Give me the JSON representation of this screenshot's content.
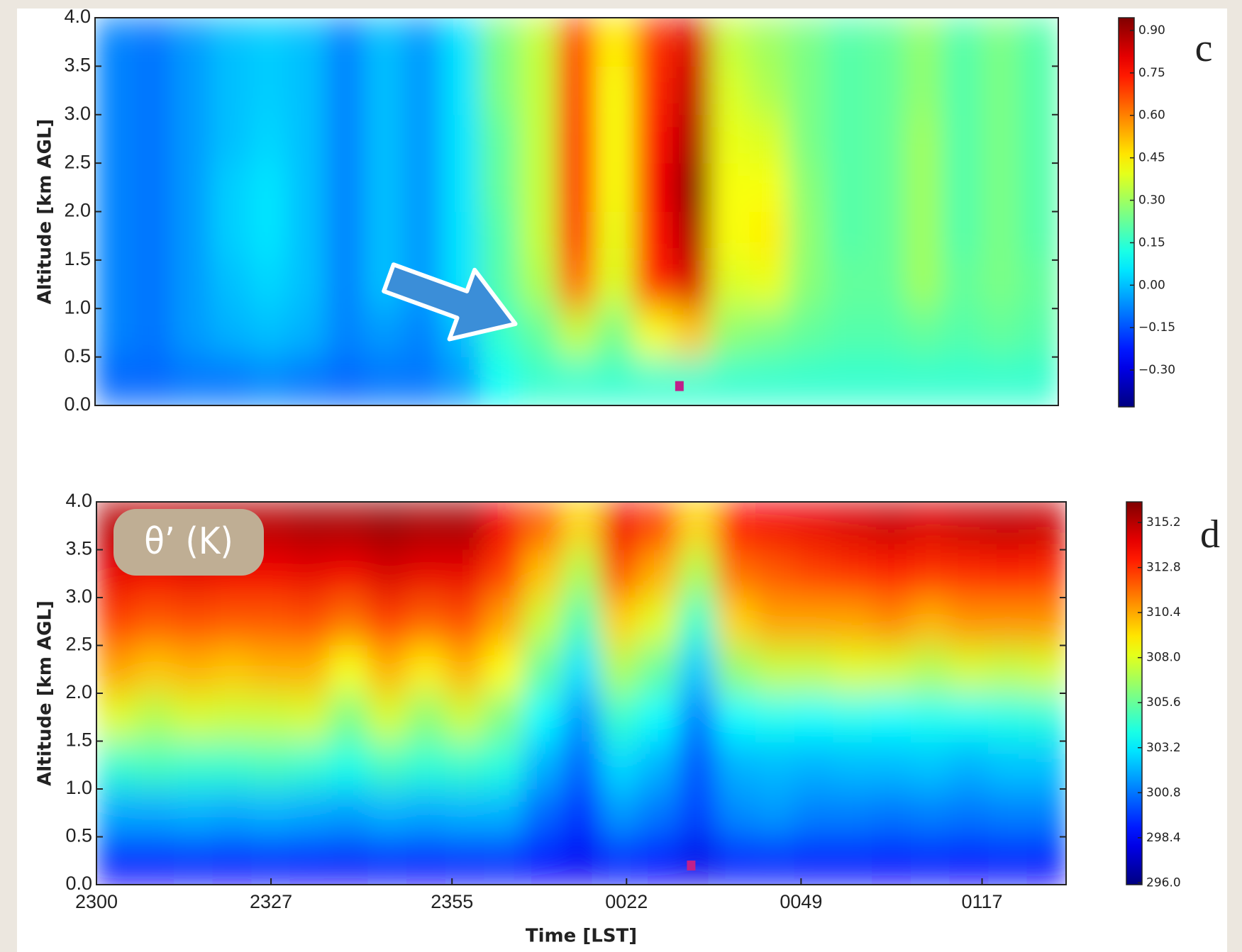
{
  "chart_data": [
    {
      "type": "heatmap",
      "panel_label": "c",
      "ylabel": "Altitude [km AGL]",
      "xlim": [
        0,
        150
      ],
      "ylim": [
        0.0,
        4.0
      ],
      "yticks": [
        {
          "value": 0,
          "label": "0.0"
        },
        0.5,
        {
          "value": 1,
          "label": "1.0"
        },
        1.5,
        {
          "value": 2,
          "label": "2.0"
        },
        2.5,
        {
          "value": 3,
          "label": "3.0"
        },
        3.5,
        {
          "value": 4,
          "label": "4.0"
        }
      ],
      "colormap": "jet",
      "clim": [
        -0.43,
        0.945
      ],
      "cticks": [
        {
          "value": 0.9,
          "label": "0.90"
        },
        0.75,
        {
          "value": 0.6,
          "label": "0.60"
        },
        0.45,
        {
          "value": 0.3,
          "label": "0.30"
        },
        0.15,
        {
          "value": 0,
          "label": "0.00"
        },
        {
          "value": -0.15,
          "label": "−0.15"
        },
        {
          "value": -0.3,
          "label": "−0.30"
        }
      ],
      "marker": {
        "x": 91,
        "y": 0.2,
        "color": "#c0208a"
      },
      "x": [
        3,
        9,
        15,
        21,
        27,
        33,
        39,
        45,
        51,
        57,
        63,
        69,
        75,
        81,
        87,
        93,
        99,
        105,
        111,
        117,
        123,
        129,
        135,
        141,
        147
      ],
      "y": [
        0.25,
        0.75,
        1.25,
        1.75,
        2.25,
        2.75,
        3.25,
        3.75
      ],
      "z": [
        [
          -0.12,
          -0.12,
          -0.1,
          -0.1,
          -0.08,
          -0.1,
          -0.12,
          -0.1,
          -0.1,
          -0.05,
          0.1,
          0.15,
          0.15,
          0.15,
          0.15,
          0.15,
          0.15,
          0.15,
          0.15,
          0.15,
          0.15,
          0.15,
          0.15,
          0.15,
          0.15
        ],
        [
          -0.08,
          -0.1,
          -0.05,
          -0.02,
          0.0,
          -0.02,
          -0.08,
          -0.05,
          -0.08,
          0.0,
          0.15,
          0.22,
          0.35,
          0.25,
          0.42,
          0.5,
          0.28,
          0.25,
          0.22,
          0.2,
          0.2,
          0.22,
          0.2,
          0.22,
          0.2
        ],
        [
          -0.08,
          -0.1,
          -0.05,
          0.0,
          0.03,
          0.0,
          -0.08,
          0.0,
          -0.05,
          0.05,
          0.2,
          0.32,
          0.62,
          0.38,
          0.72,
          0.82,
          0.38,
          0.4,
          0.27,
          0.22,
          0.22,
          0.3,
          0.22,
          0.25,
          0.22
        ],
        [
          -0.08,
          -0.1,
          -0.05,
          0.02,
          0.05,
          0.0,
          -0.08,
          0.0,
          -0.05,
          0.05,
          0.2,
          0.35,
          0.7,
          0.4,
          0.75,
          0.88,
          0.42,
          0.45,
          0.28,
          0.2,
          0.22,
          0.3,
          0.2,
          0.25,
          0.2
        ],
        [
          -0.08,
          -0.1,
          -0.05,
          0.02,
          0.05,
          0.0,
          -0.08,
          0.0,
          -0.05,
          0.05,
          0.22,
          0.35,
          0.72,
          0.42,
          0.78,
          0.92,
          0.42,
          0.42,
          0.27,
          0.2,
          0.22,
          0.3,
          0.2,
          0.25,
          0.2
        ],
        [
          -0.08,
          -0.1,
          -0.05,
          0.0,
          0.03,
          0.0,
          -0.08,
          0.0,
          -0.05,
          0.05,
          0.22,
          0.35,
          0.72,
          0.42,
          0.75,
          0.88,
          0.4,
          0.38,
          0.25,
          0.2,
          0.22,
          0.3,
          0.2,
          0.25,
          0.2
        ],
        [
          -0.08,
          -0.1,
          -0.05,
          0.0,
          0.02,
          0.0,
          -0.08,
          0.0,
          -0.05,
          0.05,
          0.25,
          0.35,
          0.7,
          0.42,
          0.72,
          0.85,
          0.38,
          0.32,
          0.25,
          0.2,
          0.22,
          0.28,
          0.2,
          0.25,
          0.2
        ],
        [
          -0.08,
          -0.1,
          -0.05,
          0.0,
          0.02,
          0.0,
          -0.08,
          0.0,
          -0.05,
          0.05,
          0.25,
          0.35,
          0.68,
          0.45,
          0.7,
          0.82,
          0.35,
          0.3,
          0.25,
          0.2,
          0.22,
          0.28,
          0.2,
          0.25,
          0.2
        ]
      ]
    },
    {
      "type": "heatmap",
      "panel_label": "d",
      "ylabel": "Altitude [km AGL]",
      "xlabel": "Time [LST]",
      "annotation": "θ’ (K)",
      "xlim": [
        0,
        150
      ],
      "ylim": [
        0.0,
        4.0
      ],
      "xticks": [
        {
          "value": 0,
          "label": "2300"
        },
        {
          "value": 27,
          "label": "2327"
        },
        {
          "value": 55,
          "label": "2355"
        },
        {
          "value": 82,
          "label": "0022"
        },
        {
          "value": 109,
          "label": "0049"
        },
        {
          "value": 137,
          "label": "0117"
        }
      ],
      "yticks": [
        {
          "value": 0,
          "label": "0.0"
        },
        0.5,
        {
          "value": 1,
          "label": "1.0"
        },
        1.5,
        {
          "value": 2,
          "label": "2.0"
        },
        2.5,
        {
          "value": 3,
          "label": "3.0"
        },
        3.5,
        {
          "value": 4,
          "label": "4.0"
        }
      ],
      "colormap": "jet",
      "clim": [
        295.9,
        316.3
      ],
      "cticks": [
        315.2,
        312.8,
        310.4,
        {
          "value": 308,
          "label": "308.0"
        },
        305.6,
        303.2,
        300.8,
        298.4,
        {
          "value": 296,
          "label": "296.0"
        }
      ],
      "marker": {
        "x": 92,
        "y": 0.2,
        "color": "#c0208a"
      },
      "x": [
        3,
        9,
        15,
        21,
        27,
        33,
        39,
        45,
        51,
        57,
        63,
        69,
        75,
        81,
        87,
        93,
        99,
        105,
        111,
        117,
        123,
        129,
        135,
        141,
        147
      ],
      "y": [
        0.25,
        0.75,
        1.25,
        1.75,
        2.25,
        2.75,
        3.25,
        3.75
      ],
      "z": [
        [
          298.5,
          298.5,
          298.6,
          298.5,
          298.6,
          298.5,
          298.4,
          298.6,
          298.5,
          298.6,
          298.8,
          298.5,
          298.2,
          298.8,
          298.5,
          298.0,
          298.8,
          298.8,
          298.6,
          298.6,
          298.5,
          298.6,
          298.5,
          298.6,
          298.5
        ],
        [
          301.8,
          301.8,
          302.0,
          301.8,
          302.0,
          301.8,
          301.6,
          302.0,
          301.8,
          302.0,
          302.0,
          300.5,
          299.5,
          301.5,
          300.8,
          299.8,
          301.2,
          301.5,
          301.0,
          301.0,
          300.8,
          301.0,
          300.8,
          301.0,
          301.0
        ],
        [
          304.5,
          304.8,
          304.6,
          304.6,
          304.8,
          304.5,
          304.0,
          304.8,
          304.4,
          304.6,
          304.2,
          302.0,
          300.5,
          302.8,
          302.0,
          300.2,
          302.0,
          302.2,
          302.0,
          302.2,
          302.2,
          302.4,
          302.0,
          302.4,
          302.4
        ],
        [
          308.0,
          307.2,
          307.8,
          307.6,
          307.6,
          307.8,
          306.0,
          307.8,
          306.4,
          307.6,
          306.0,
          303.5,
          301.5,
          304.5,
          303.5,
          301.0,
          303.5,
          303.8,
          303.6,
          303.8,
          303.6,
          303.8,
          303.8,
          304.0,
          304.2
        ],
        [
          310.5,
          309.8,
          310.2,
          309.8,
          310.2,
          310.2,
          308.5,
          310.2,
          309.0,
          310.2,
          308.6,
          305.5,
          303.0,
          307.0,
          305.5,
          302.5,
          306.5,
          307.5,
          307.5,
          308.0,
          307.8,
          307.2,
          307.8,
          307.5,
          307.8
        ],
        [
          312.5,
          312.0,
          312.2,
          312.0,
          312.0,
          312.2,
          311.5,
          312.5,
          311.8,
          312.2,
          310.5,
          307.5,
          305.0,
          309.5,
          308.0,
          304.5,
          309.5,
          310.5,
          310.5,
          310.5,
          311.0,
          310.2,
          310.8,
          310.8,
          310.8
        ],
        [
          314.2,
          314.0,
          314.2,
          314.0,
          314.0,
          314.2,
          314.0,
          314.5,
          314.2,
          314.2,
          312.5,
          309.8,
          307.0,
          312.0,
          310.2,
          307.0,
          311.5,
          312.0,
          312.5,
          312.8,
          313.2,
          312.8,
          313.0,
          313.2,
          313.0
        ],
        [
          315.2,
          315.0,
          315.2,
          315.2,
          315.2,
          315.5,
          315.5,
          315.8,
          315.5,
          315.5,
          314.0,
          311.8,
          309.5,
          314.0,
          312.5,
          309.5,
          313.5,
          314.0,
          314.2,
          314.5,
          314.8,
          314.5,
          314.8,
          315.0,
          314.8
        ]
      ]
    }
  ]
}
